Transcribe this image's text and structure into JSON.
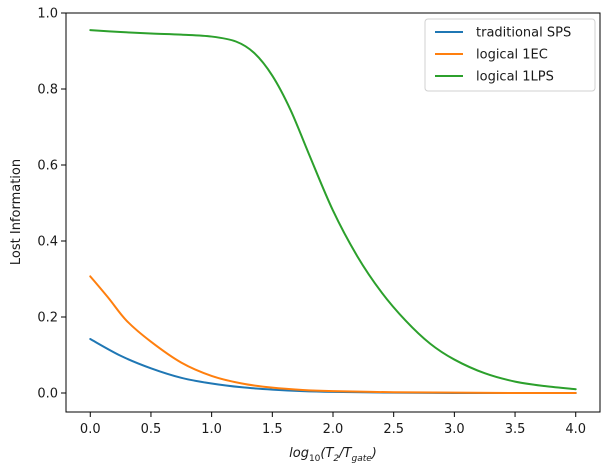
{
  "chart_data": {
    "type": "line",
    "title": "",
    "xlabel_parts": {
      "base": "log",
      "base_sub": "10",
      "open": "(T",
      "num_sub": "2",
      "slash": "/T",
      "den_sub": "gate",
      "close": ")"
    },
    "ylabel": "Lost Information",
    "xlim": [
      -0.2,
      4.2
    ],
    "ylim": [
      -0.05,
      1.0
    ],
    "xticks": [
      0.0,
      0.5,
      1.0,
      1.5,
      2.0,
      2.5,
      3.0,
      3.5,
      4.0
    ],
    "xtick_labels": [
      "0.0",
      "0.5",
      "1.0",
      "1.5",
      "2.0",
      "2.5",
      "3.0",
      "3.5",
      "4.0"
    ],
    "yticks": [
      0.0,
      0.2,
      0.4,
      0.6,
      0.8,
      1.0
    ],
    "ytick_labels": [
      "0.0",
      "0.2",
      "0.4",
      "0.6",
      "0.8",
      "1.0"
    ],
    "grid": false,
    "legend_position": "top-right",
    "series": [
      {
        "name": "traditional SPS",
        "color": "#1f77b4",
        "x": [
          0.0,
          0.25,
          0.5,
          0.75,
          1.0,
          1.25,
          1.5,
          1.75,
          2.0,
          2.5,
          3.0,
          3.5,
          4.0
        ],
        "y": [
          0.142,
          0.098,
          0.065,
          0.04,
          0.025,
          0.015,
          0.009,
          0.005,
          0.003,
          0.001,
          0.0,
          0.0,
          0.0
        ]
      },
      {
        "name": "logical 1EC",
        "color": "#ff7f0e",
        "x": [
          0.0,
          0.15,
          0.3,
          0.5,
          0.75,
          1.0,
          1.25,
          1.5,
          1.75,
          2.0,
          2.5,
          3.0,
          3.5,
          4.0
        ],
        "y": [
          0.307,
          0.25,
          0.19,
          0.135,
          0.08,
          0.045,
          0.025,
          0.014,
          0.008,
          0.005,
          0.002,
          0.001,
          0.0,
          0.0
        ]
      },
      {
        "name": "logical 1LPS",
        "color": "#2ca02c",
        "x": [
          0.0,
          0.25,
          0.5,
          0.75,
          1.0,
          1.2,
          1.35,
          1.5,
          1.65,
          1.8,
          2.0,
          2.2,
          2.4,
          2.6,
          2.8,
          3.0,
          3.25,
          3.5,
          3.75,
          4.0
        ],
        "y": [
          0.955,
          0.95,
          0.946,
          0.943,
          0.938,
          0.925,
          0.895,
          0.835,
          0.745,
          0.63,
          0.48,
          0.36,
          0.265,
          0.19,
          0.13,
          0.088,
          0.052,
          0.03,
          0.018,
          0.01
        ]
      }
    ]
  }
}
